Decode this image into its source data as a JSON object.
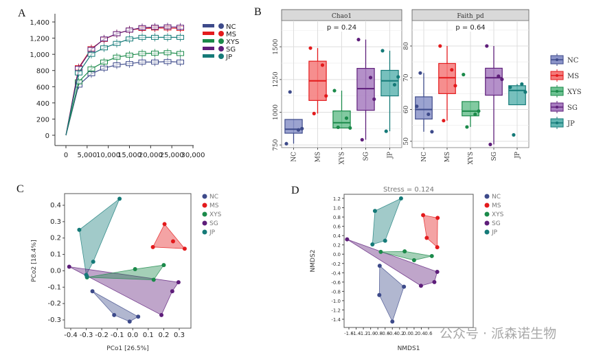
{
  "groups": [
    {
      "name": "NC",
      "color": "#3d4a8a",
      "fill": "#8a93c8"
    },
    {
      "name": "MS",
      "color": "#e31a1c",
      "fill": "#f47a7a"
    },
    {
      "name": "XYS",
      "color": "#1b8a4a",
      "fill": "#6cc191"
    },
    {
      "name": "SG",
      "color": "#5e1e7a",
      "fill": "#a77cbf"
    },
    {
      "name": "JP",
      "color": "#157a78",
      "fill": "#5fb5b1"
    }
  ],
  "watermark": "公众号 · 派森诺生物",
  "chart_data": [
    {
      "panel": "A",
      "type": "line",
      "title": "",
      "xlabel": "",
      "ylabel": "",
      "xlim": [
        0,
        30000
      ],
      "ylim": [
        0,
        1400
      ],
      "x_ticks": [
        "0",
        "5,000",
        "10,000",
        "15,000",
        "20,000",
        "25,000",
        "30,000"
      ],
      "x_tick_values": [
        0,
        5000,
        10000,
        15000,
        20000,
        25000,
        30000
      ],
      "y_ticks": [
        "0",
        "200",
        "400",
        "600",
        "800",
        "1,000",
        "1,200",
        "1,400"
      ],
      "y_tick_values": [
        0,
        200,
        400,
        600,
        800,
        1000,
        1200,
        1400
      ],
      "legend": "right",
      "x": [
        0,
        3000,
        6000,
        9000,
        12000,
        15000,
        18000,
        21000,
        24000,
        27000
      ],
      "series": [
        {
          "name": "NC",
          "values": [
            0,
            620,
            760,
            830,
            870,
            885,
            905,
            905,
            910,
            905
          ]
        },
        {
          "name": "MS",
          "values": [
            0,
            835,
            1070,
            1185,
            1255,
            1300,
            1320,
            1325,
            1325,
            1320
          ]
        },
        {
          "name": "XYS",
          "values": [
            0,
            660,
            820,
            905,
            965,
            990,
            1010,
            1015,
            1020,
            1010
          ]
        },
        {
          "name": "SG",
          "values": [
            0,
            825,
            1060,
            1190,
            1255,
            1300,
            1330,
            1335,
            1340,
            1335
          ]
        },
        {
          "name": "JP",
          "values": [
            0,
            770,
            1000,
            1080,
            1135,
            1190,
            1210,
            1210,
            1210,
            1210
          ]
        }
      ]
    },
    {
      "panel": "B",
      "type": "box",
      "facets": [
        {
          "title": "Chao1",
          "annotation": "p = 0.24",
          "ylim": [
            730,
            1700
          ],
          "y_ticks": [
            "750",
            "1000",
            "1250",
            "1500"
          ],
          "y_tick_values": [
            750,
            1000,
            1250,
            1500
          ],
          "categories": [
            "NC",
            "MS",
            "XYS",
            "SG",
            "JP"
          ],
          "boxes": [
            {
              "group": "NC",
              "min": 760,
              "q1": 840,
              "median": 870,
              "q3": 945,
              "max": 945,
              "points": [
                760,
                865,
                875,
                1155
              ]
            },
            {
              "group": "MS",
              "min": 990,
              "q1": 1090,
              "median": 1240,
              "q3": 1390,
              "max": 1490,
              "points": [
                1490,
                1360,
                1125,
                990
              ]
            },
            {
              "group": "XYS",
              "min": 880,
              "q1": 880,
              "median": 920,
              "q3": 1010,
              "max": 1165,
              "points": [
                1165,
                955,
                880,
                885
              ]
            },
            {
              "group": "SG",
              "min": 790,
              "q1": 1015,
              "median": 1180,
              "q3": 1335,
              "max": 1555,
              "points": [
                1555,
                1265,
                1100,
                790
              ]
            },
            {
              "group": "JP",
              "min": 855,
              "q1": 1125,
              "median": 1240,
              "q3": 1320,
              "max": 1470,
              "points": [
                1470,
                1210,
                1270,
                855
              ]
            }
          ]
        },
        {
          "title": "Faith_pd",
          "annotation": "p = 0.64",
          "ylim": [
            48,
            88
          ],
          "y_ticks": [
            "50",
            "60",
            "70",
            "80"
          ],
          "y_tick_values": [
            50,
            60,
            70,
            80
          ],
          "categories": [
            "NC",
            "MS",
            "XYS",
            "SG",
            "JP"
          ],
          "boxes": [
            {
              "group": "NC",
              "min": 53,
              "q1": 57,
              "median": 60,
              "q3": 64,
              "max": 71.5,
              "points": [
                61,
                58.5,
                53,
                71.5
              ]
            },
            {
              "group": "MS",
              "min": 56.5,
              "q1": 65,
              "median": 70,
              "q3": 74.5,
              "max": 80,
              "points": [
                80,
                72.5,
                67.5,
                56.5
              ]
            },
            {
              "group": "XYS",
              "min": 54.5,
              "q1": 58,
              "median": 59.5,
              "q3": 62.5,
              "max": 62.5,
              "points": [
                71,
                58.5,
                59.5,
                54.5
              ]
            },
            {
              "group": "SG",
              "min": 49,
              "q1": 64.5,
              "median": 70,
              "q3": 73,
              "max": 80,
              "points": [
                80,
                70.5,
                69.5,
                49
              ]
            },
            {
              "group": "JP",
              "min": 61.5,
              "q1": 61.5,
              "median": 66,
              "q3": 67.5,
              "max": 68,
              "points": [
                67,
                68,
                65.5,
                52
              ]
            }
          ]
        }
      ],
      "legend": "right"
    },
    {
      "panel": "C",
      "type": "scatter",
      "xlabel": "PCo1 [26.5%]",
      "ylabel": "PCo2 [18.4%]",
      "xlim": [
        -0.43,
        0.36
      ],
      "ylim": [
        -0.35,
        0.46
      ],
      "x_ticks": [
        "-0.4",
        "-0.3",
        "-0.2",
        "-0.1",
        "0.0",
        "0.1",
        "0.2",
        "0.3"
      ],
      "x_tick_values": [
        -0.4,
        -0.3,
        -0.2,
        -0.1,
        0.0,
        0.1,
        0.2,
        0.3
      ],
      "y_ticks": [
        "-0.3",
        "-0.2",
        "-0.1",
        "0.0",
        "0.1",
        "0.2",
        "0.3",
        "0.4"
      ],
      "y_tick_values": [
        -0.3,
        -0.2,
        -0.1,
        0.0,
        0.1,
        0.2,
        0.3,
        0.4
      ],
      "legend": "top-right",
      "series": [
        {
          "name": "NC",
          "points": [
            [
              -0.26,
              -0.125
            ],
            [
              -0.12,
              -0.27
            ],
            [
              -0.02,
              -0.31
            ],
            [
              0.035,
              -0.28
            ]
          ],
          "hull": [
            0,
            1,
            2,
            3
          ]
        },
        {
          "name": "MS",
          "points": [
            [
              0.13,
              0.145
            ],
            [
              0.205,
              0.285
            ],
            [
              0.26,
              0.18
            ],
            [
              0.335,
              0.135
            ]
          ],
          "hull": [
            0,
            1,
            3
          ]
        },
        {
          "name": "XYS",
          "points": [
            [
              -0.295,
              -0.04
            ],
            [
              0.015,
              0.01
            ],
            [
              0.2,
              0.035
            ],
            [
              0.135,
              -0.055
            ]
          ],
          "hull": [
            0,
            1,
            2,
            3
          ]
        },
        {
          "name": "SG",
          "points": [
            [
              -0.41,
              0.025
            ],
            [
              0.295,
              -0.07
            ],
            [
              0.255,
              -0.125
            ],
            [
              0.185,
              -0.27
            ]
          ],
          "hull": [
            0,
            1,
            2,
            3
          ]
        },
        {
          "name": "JP",
          "points": [
            [
              -0.345,
              0.25
            ],
            [
              -0.085,
              0.44
            ],
            [
              -0.255,
              0.055
            ],
            [
              -0.3,
              -0.025
            ],
            [
              -0.295,
              -0.035
            ]
          ],
          "hull": [
            0,
            1,
            2,
            3
          ]
        }
      ]
    },
    {
      "panel": "D",
      "type": "scatter",
      "title": "Stress = 0.124",
      "xlabel": "NMDS1",
      "ylabel": "NMDS2",
      "xlim": [
        -1.7,
        0.9
      ],
      "ylim": [
        -1.55,
        1.32
      ],
      "x_ticks": [
        "-1.6",
        "-1.4",
        "-1.2",
        "-1.0",
        "-0.8",
        "-0.6",
        "-0.4",
        "-0.2",
        "0.0",
        "0.2",
        "0.4",
        "0.6"
      ],
      "x_tick_values": [
        -1.6,
        -1.4,
        -1.2,
        -1.0,
        -0.8,
        -0.6,
        -0.4,
        -0.2,
        0.0,
        0.2,
        0.4,
        0.6
      ],
      "y_ticks": [
        "-1.4",
        "-1.2",
        "-1.0",
        "-0.8",
        "-0.6",
        "-0.4",
        "-0.2",
        "0.0",
        "0.2",
        "0.4",
        "0.6",
        "0.8",
        "1.0",
        "1.2"
      ],
      "y_tick_values": [
        -1.4,
        -1.2,
        -1.0,
        -0.8,
        -0.6,
        -0.4,
        -0.2,
        0.0,
        0.2,
        0.4,
        0.6,
        0.8,
        1.0,
        1.2
      ],
      "legend": "top-right",
      "series": [
        {
          "name": "NC",
          "points": [
            [
              -0.75,
              -0.25
            ],
            [
              -0.08,
              -0.7
            ],
            [
              -0.4,
              -1.45
            ],
            [
              -0.76,
              -0.88
            ]
          ],
          "hull": [
            0,
            1,
            2,
            3
          ]
        },
        {
          "name": "MS",
          "points": [
            [
              0.45,
              0.84
            ],
            [
              0.85,
              0.78
            ],
            [
              0.84,
              0.15
            ],
            [
              0.55,
              0.35
            ]
          ],
          "hull": [
            0,
            1,
            2,
            3
          ]
        },
        {
          "name": "XYS",
          "points": [
            [
              -0.72,
              0.05
            ],
            [
              -0.06,
              0.06
            ],
            [
              0.69,
              -0.04
            ],
            [
              0.2,
              -0.13
            ]
          ],
          "hull": [
            0,
            1,
            2,
            3
          ]
        },
        {
          "name": "SG",
          "points": [
            [
              -1.65,
              0.32
            ],
            [
              0.84,
              -0.38
            ],
            [
              0.76,
              -0.6
            ],
            [
              0.39,
              -0.68
            ]
          ],
          "hull": [
            0,
            1,
            2,
            3
          ]
        },
        {
          "name": "JP",
          "points": [
            [
              -0.88,
              0.93
            ],
            [
              -0.16,
              1.2
            ],
            [
              -0.6,
              0.29
            ],
            [
              -0.95,
              0.21
            ]
          ],
          "hull": [
            0,
            1,
            2,
            3
          ]
        }
      ]
    }
  ]
}
